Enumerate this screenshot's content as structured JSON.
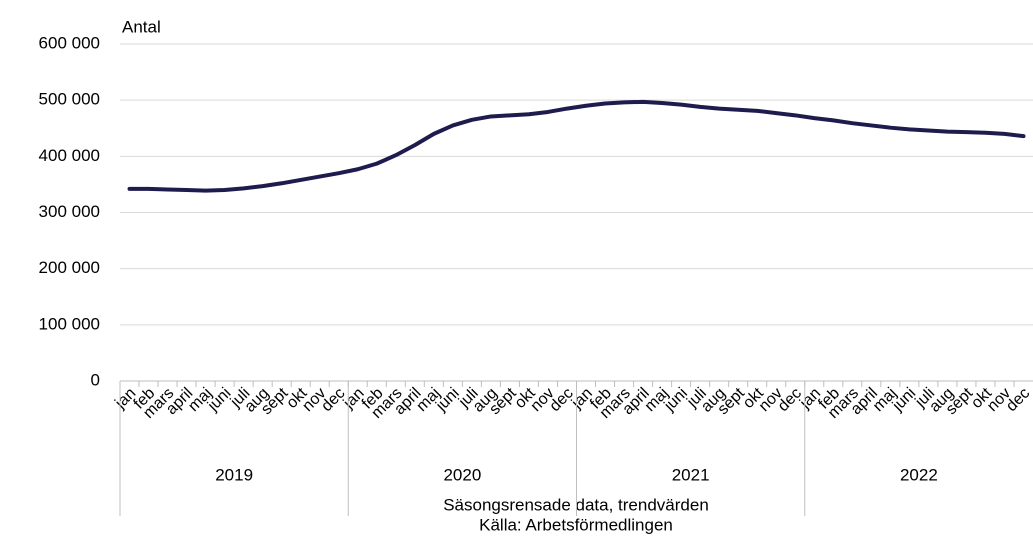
{
  "chart_data": {
    "type": "line",
    "y_label": "Antal",
    "categories": [
      "jan",
      "feb",
      "mars",
      "april",
      "maj",
      "juni",
      "juli",
      "aug",
      "sept",
      "okt",
      "nov",
      "dec",
      "jan",
      "feb",
      "mars",
      "april",
      "maj",
      "juni",
      "juli",
      "aug",
      "sept",
      "okt",
      "nov",
      "dec",
      "jan",
      "feb",
      "mars",
      "april",
      "maj",
      "juni",
      "juli",
      "aug",
      "sept",
      "okt",
      "nov",
      "dec",
      "jan",
      "feb",
      "mars",
      "april",
      "maj",
      "juni",
      "juli",
      "aug",
      "sept",
      "okt",
      "nov",
      "dec"
    ],
    "category_groups": [
      "2019",
      "2020",
      "2021",
      "2022"
    ],
    "series": [
      {
        "color": "#1e1b4e",
        "values": [
          342000,
          342000,
          341000,
          340000,
          339000,
          340000,
          343000,
          347000,
          352000,
          358000,
          364000,
          370000,
          377000,
          387000,
          402000,
          420000,
          440000,
          455000,
          465000,
          471000,
          473000,
          475000,
          479000,
          485000,
          490000,
          494000,
          496000,
          497000,
          495000,
          492000,
          488000,
          485000,
          483000,
          481000,
          477000,
          473000,
          468000,
          464000,
          459000,
          455000,
          451000,
          448000,
          446000,
          444000,
          443000,
          442000,
          440000,
          436000
        ]
      }
    ],
    "ylim": [
      0,
      600000
    ],
    "yticks": [
      0,
      {
        "value": 100000,
        "label": "100 000"
      },
      {
        "value": 200000,
        "label": "200 000"
      },
      {
        "value": 300000,
        "label": "300 000"
      },
      {
        "value": 400000,
        "label": "400 000"
      },
      {
        "value": 500000,
        "label": "500 000"
      },
      {
        "value": 600000,
        "label": "600 000"
      }
    ],
    "grid": true,
    "notes": [
      "Säsongsrensade data, trendvärden",
      "Källa: Arbetsförmedlingen"
    ]
  }
}
